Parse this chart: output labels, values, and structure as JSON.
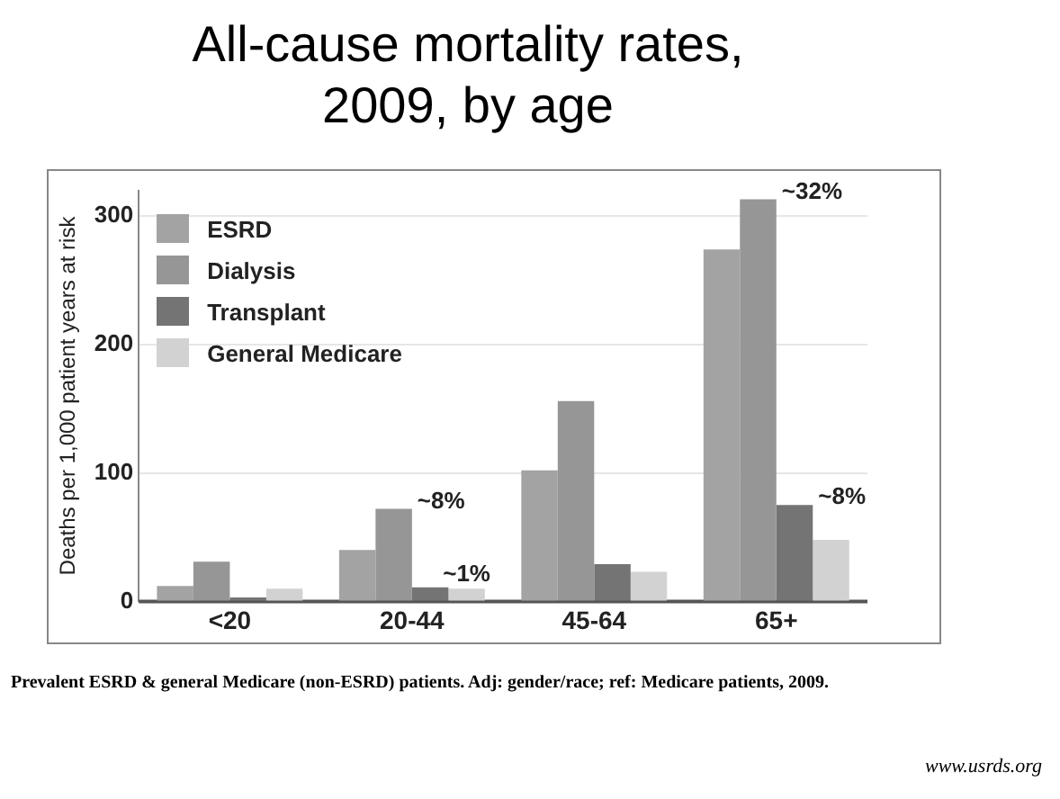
{
  "chart_data": {
    "type": "bar",
    "title": "All-cause mortality rates, 2009, by age",
    "ylabel": "Deaths per 1,000 patient years at risk",
    "categories": [
      "<20",
      "20-44",
      "45-64",
      "65+"
    ],
    "series": [
      {
        "name": "ESRD",
        "color": "#a3a3a3",
        "values": [
          12,
          40,
          102,
          274
        ]
      },
      {
        "name": "Dialysis",
        "color": "#969696",
        "values": [
          31,
          72,
          156,
          313
        ]
      },
      {
        "name": "Transplant",
        "color": "#747474",
        "values": [
          3,
          11,
          29,
          75
        ]
      },
      {
        "name": "General Medicare",
        "color": "#d2d2d2",
        "values": [
          10,
          10,
          23,
          48
        ]
      }
    ],
    "ylim": [
      0,
      320
    ],
    "yticks": [
      0,
      100,
      200,
      300
    ],
    "grid": "y",
    "legend": "top left",
    "annotations": [
      {
        "text": "~8%",
        "x": "20-44",
        "y": 72
      },
      {
        "text": "~1%",
        "x": "20-44",
        "y": 10
      },
      {
        "text": "~32%",
        "x": "65+",
        "y": 313
      },
      {
        "text": "~8%",
        "x": "65+",
        "y": 75
      },
      "Prevalent ESRD & general Medicare (non-ESRD) patients. Adj: gender/race; ref: Medicare patients, 2009.",
      "www.usrds.org"
    ]
  }
}
